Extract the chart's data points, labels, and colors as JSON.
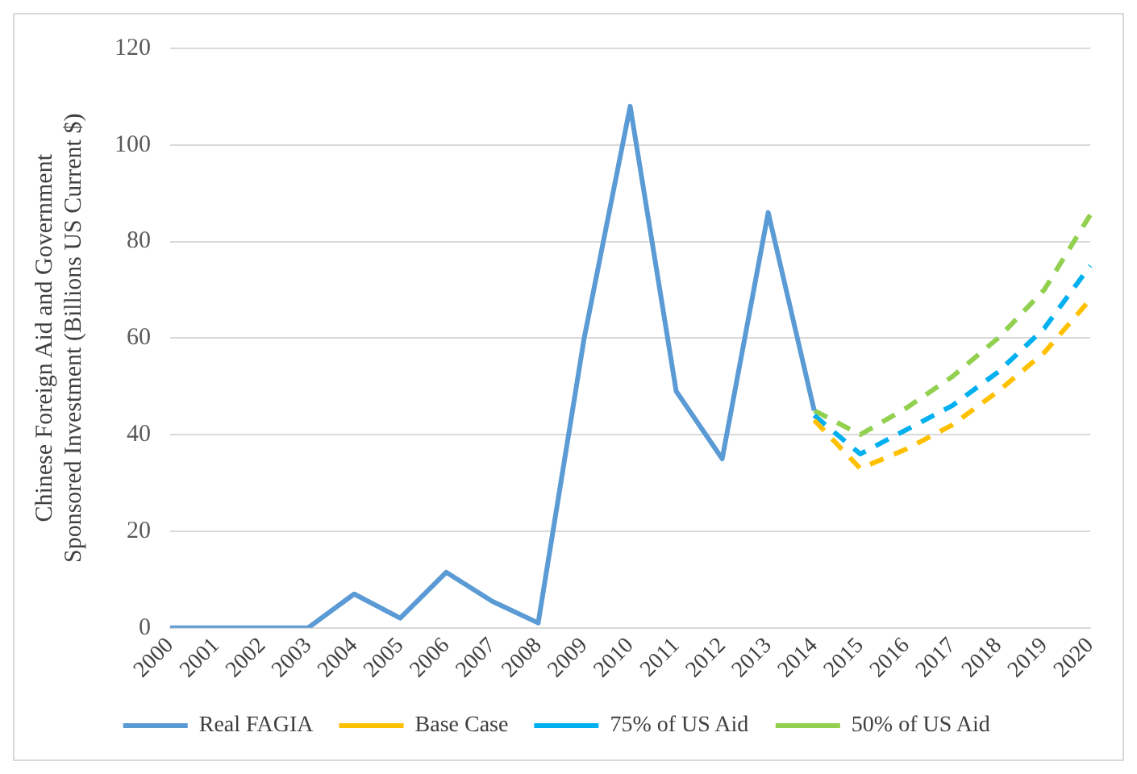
{
  "chart_data": {
    "type": "line",
    "ylabel": "Chinese Foreign Aid and Government Sponsored Investment (Billions US Current $)",
    "categories": [
      "2000",
      "2001",
      "2002",
      "2003",
      "2004",
      "2005",
      "2006",
      "2007",
      "2008",
      "2009",
      "2010",
      "2011",
      "2012",
      "2013",
      "2014",
      "2015",
      "2016",
      "2017",
      "2018",
      "2019",
      "2020"
    ],
    "series": [
      {
        "name": "Real FAGIA",
        "color": "#5b9bd5",
        "line_style": "solid",
        "values": [
          0,
          0,
          0,
          0,
          7,
          2,
          11.5,
          5.5,
          1,
          60,
          108,
          49,
          35,
          86,
          45,
          null,
          null,
          null,
          null,
          null,
          null
        ]
      },
      {
        "name": "Base Case",
        "color": "#ffc000",
        "line_style": "dashed",
        "values": [
          null,
          null,
          null,
          null,
          null,
          null,
          null,
          null,
          null,
          null,
          null,
          null,
          null,
          null,
          43,
          33,
          37,
          42,
          49,
          57,
          68
        ]
      },
      {
        "name": "75% of US Aid",
        "color": "#00b0f0",
        "line_style": "dashed",
        "values": [
          null,
          null,
          null,
          null,
          null,
          null,
          null,
          null,
          null,
          null,
          null,
          null,
          null,
          null,
          44,
          36,
          41,
          46,
          53,
          62,
          75
        ]
      },
      {
        "name": "50% of US Aid",
        "color": "#92d050",
        "line_style": "dashed",
        "values": [
          null,
          null,
          null,
          null,
          null,
          null,
          null,
          null,
          null,
          null,
          null,
          null,
          null,
          null,
          45,
          40,
          45.5,
          52,
          60,
          70,
          85.5
        ]
      }
    ],
    "ylim": [
      0,
      120
    ],
    "yticks": [
      0,
      20,
      40,
      60,
      80,
      100,
      120
    ],
    "grid": "y",
    "legend": "bottom",
    "marker": "none"
  }
}
